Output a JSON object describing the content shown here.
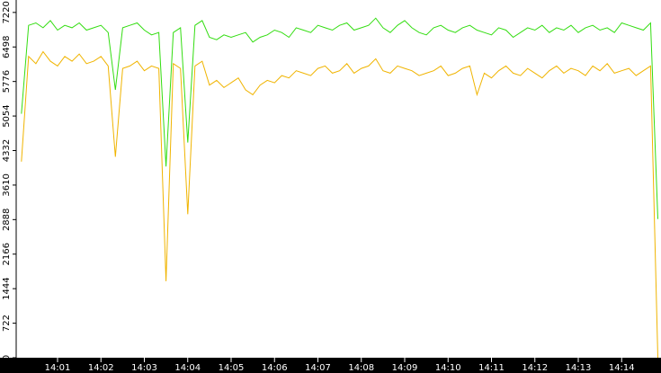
{
  "chart_data": {
    "type": "line",
    "categories": [
      null,
      null,
      null,
      null,
      null,
      "14:01",
      null,
      null,
      null,
      null,
      null,
      "14:02",
      null,
      null,
      null,
      null,
      null,
      "14:03",
      null,
      null,
      null,
      null,
      null,
      "14:04",
      null,
      null,
      null,
      null,
      null,
      "14:05",
      null,
      null,
      null,
      null,
      null,
      "14:06",
      null,
      null,
      null,
      null,
      null,
      "14:07",
      null,
      null,
      null,
      null,
      null,
      "14:08",
      null,
      null,
      null,
      null,
      null,
      "14:09",
      null,
      null,
      null,
      null,
      null,
      "14:10",
      null,
      null,
      null,
      null,
      null,
      "14:11",
      null,
      null,
      null,
      null,
      null,
      "14:12",
      null,
      null,
      null,
      null,
      null,
      "14:13",
      null,
      null,
      null,
      null,
      null,
      "14:14",
      null,
      null,
      null,
      null,
      null
    ],
    "series": [
      {
        "color": "#33dd11",
        "values": [
          5100,
          6950,
          7000,
          6900,
          7050,
          6850,
          6950,
          6900,
          7000,
          6850,
          6900,
          6950,
          6800,
          5600,
          6900,
          6950,
          7000,
          6850,
          6750,
          6800,
          4000,
          6800,
          6900,
          4500,
          6950,
          7050,
          6700,
          6650,
          6750,
          6700,
          6750,
          6800,
          6600,
          6700,
          6750,
          6850,
          6800,
          6700,
          6900,
          6850,
          6800,
          6950,
          6900,
          6850,
          6950,
          7000,
          6850,
          6900,
          6950,
          7100,
          6900,
          6800,
          6950,
          7050,
          6900,
          6800,
          6750,
          6900,
          6950,
          6850,
          6800,
          6900,
          6950,
          6850,
          6800,
          6750,
          6900,
          6850,
          6700,
          6800,
          6900,
          6850,
          6950,
          6800,
          6900,
          6850,
          6950,
          6800,
          6900,
          6950,
          6850,
          6900,
          6800,
          7000,
          6950,
          6900,
          6850,
          7000,
          2900
        ]
      },
      {
        "color": "#f0b400",
        "values": [
          4100,
          6300,
          6150,
          6400,
          6200,
          6100,
          6300,
          6200,
          6350,
          6150,
          6200,
          6300,
          6100,
          4200,
          6050,
          6100,
          6200,
          6000,
          6100,
          6050,
          1600,
          6150,
          6050,
          3000,
          6100,
          6200,
          5700,
          5800,
          5650,
          5750,
          5850,
          5600,
          5500,
          5700,
          5800,
          5750,
          5900,
          5850,
          6000,
          5950,
          5900,
          6050,
          6100,
          5950,
          6000,
          6150,
          5950,
          6050,
          6100,
          6250,
          6000,
          5950,
          6100,
          6050,
          6000,
          5900,
          5950,
          6000,
          6100,
          5900,
          5950,
          6050,
          6100,
          5500,
          5950,
          5850,
          6000,
          6100,
          5950,
          5900,
          6050,
          5950,
          5850,
          6000,
          6100,
          5950,
          6050,
          6000,
          5900,
          6100,
          6000,
          6150,
          5950,
          6000,
          6050,
          5900,
          6000,
          6100,
          0
        ]
      }
    ],
    "ylim": [
      0,
      7480
    ],
    "yticks": [
      0,
      722,
      1444,
      2166,
      2888,
      3610,
      4332,
      5054,
      5776,
      6498,
      7220
    ]
  }
}
